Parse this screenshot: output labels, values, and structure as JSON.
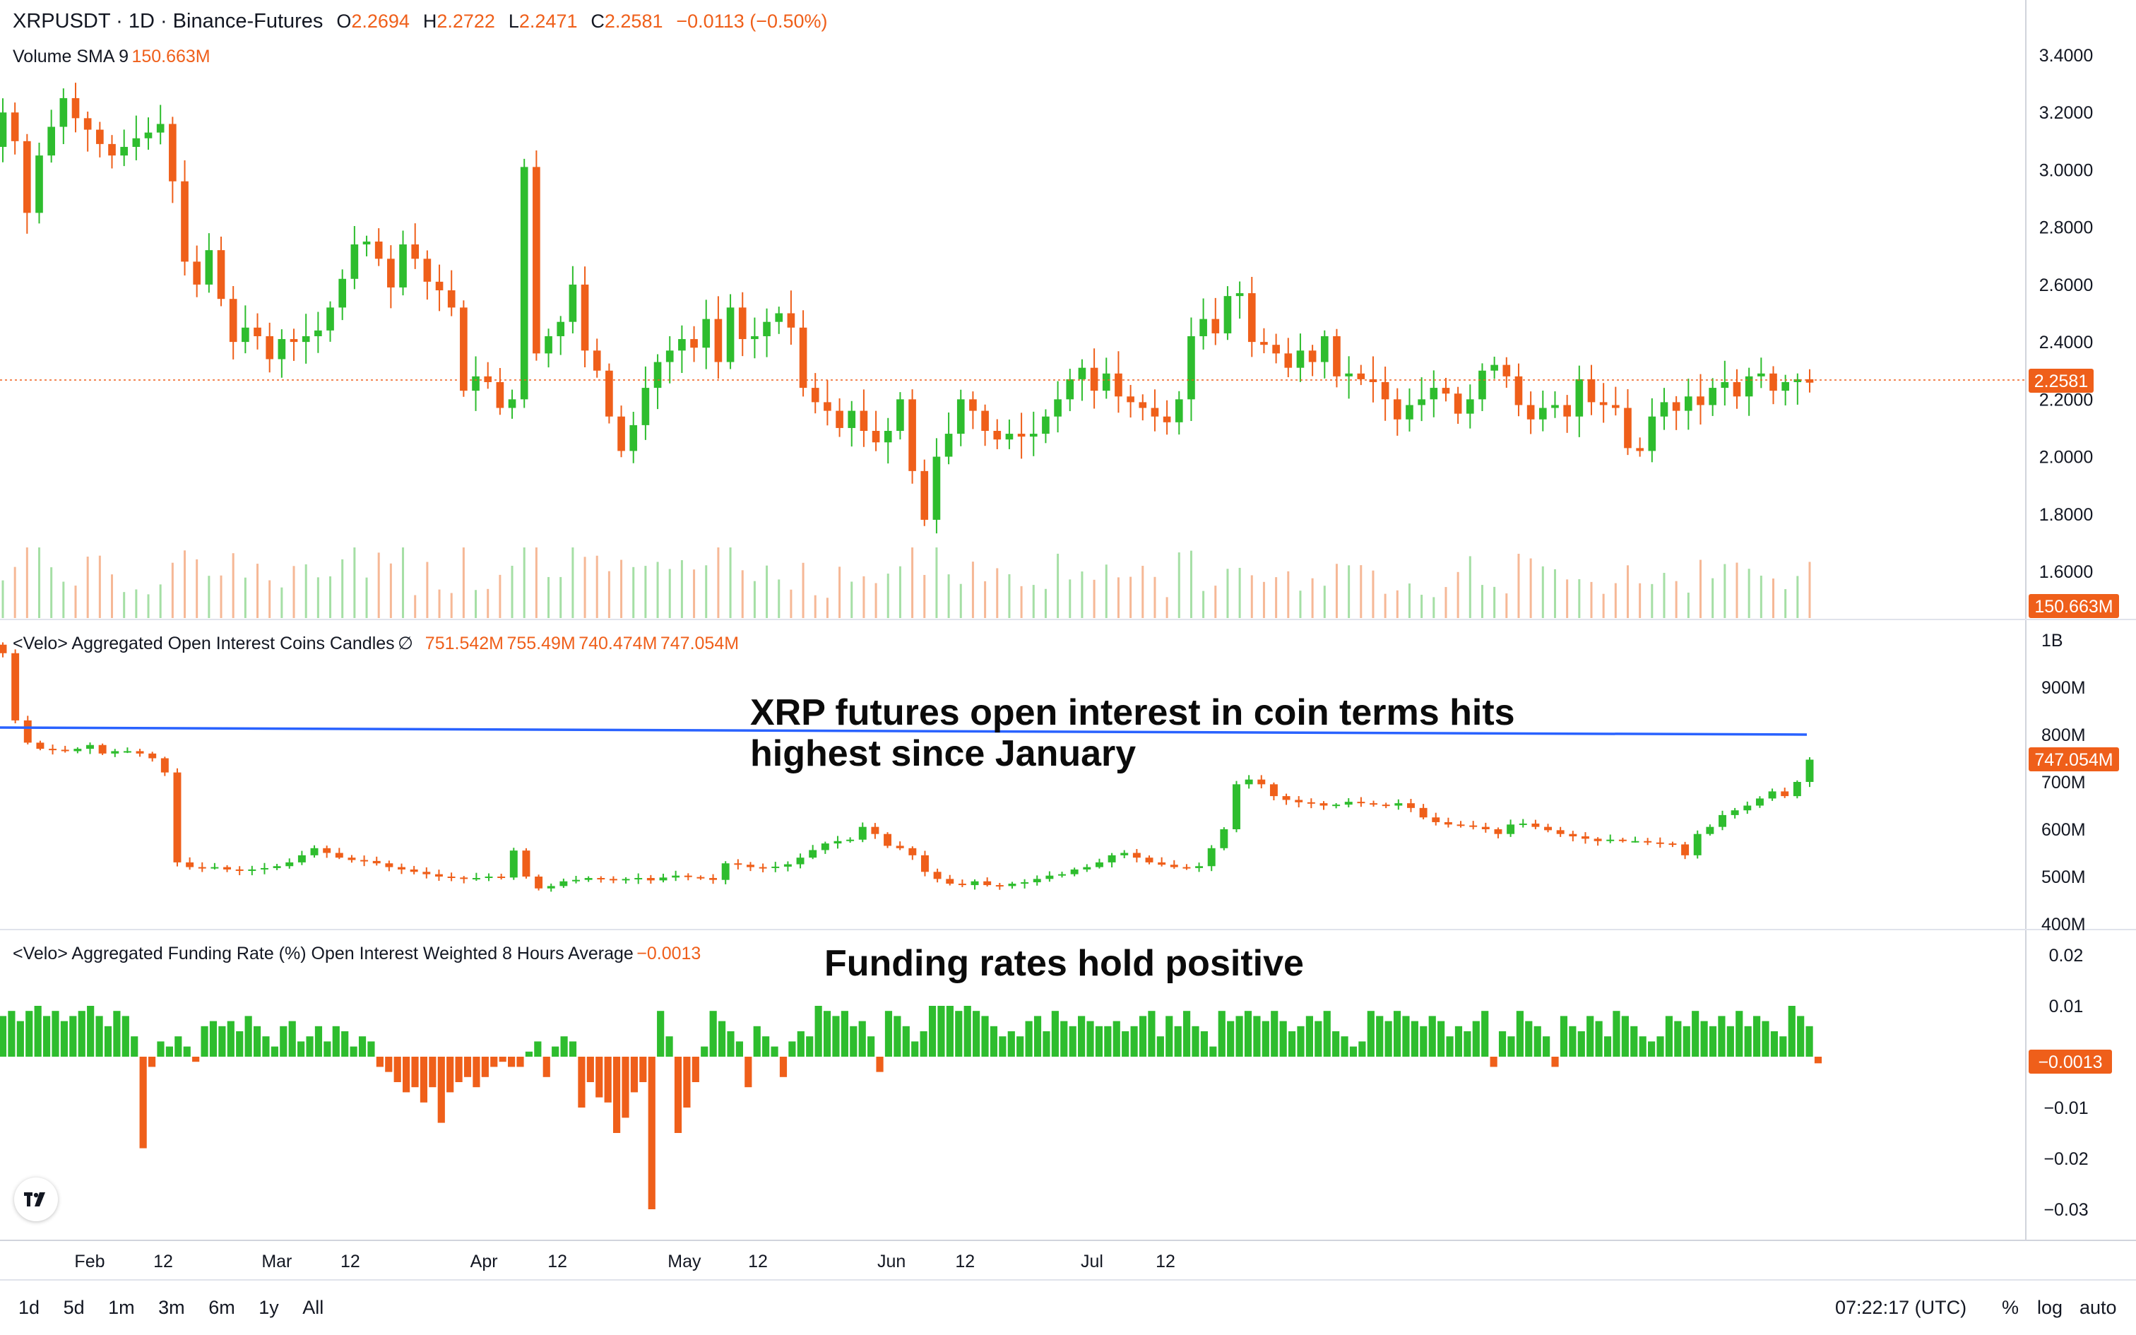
{
  "header": {
    "symbol": "XRPUSDT · 1D · Binance-Futures",
    "o_label": "O",
    "o": "2.2694",
    "h_label": "H",
    "h": "2.2722",
    "l_label": "L",
    "l": "2.2471",
    "c_label": "C",
    "c": "2.2581",
    "change": "−0.0113 (−0.50%)",
    "volume_label": "Volume SMA 9",
    "volume_value": "150.663M"
  },
  "oi_header": {
    "label": "<Velo> Aggregated Open Interest  Coins Candles",
    "eye": "∅",
    "o": "751.542M",
    "h": "755.49M",
    "l": "740.474M",
    "c": "747.054M"
  },
  "fr_header": {
    "label": "<Velo> Aggregated Funding Rate (%) Open Interest Weighted 8 Hours Average",
    "value": "−0.0013"
  },
  "annotations": {
    "oi_line1": "XRP futures open interest in coin terms hits",
    "oi_line2": "highest since January",
    "funding": "Funding rates hold positive"
  },
  "bottom_bar": {
    "ranges": [
      "1d",
      "5d",
      "1m",
      "3m",
      "6m",
      "1y",
      "All"
    ],
    "clock": "07:22:17 (UTC)",
    "percent": "%",
    "log": "log",
    "auto": "auto"
  },
  "colors": {
    "up": "#2ebd2e",
    "down": "#ef5f1a",
    "line": "#2962ff",
    "grid": "#e0e3eb",
    "text": "#131722"
  },
  "chart_data": [
    {
      "type": "candlestick",
      "title": "XRPUSDT · 1D · Binance-Futures",
      "yaxis_ticks": [
        "3.4000",
        "3.2000",
        "3.0000",
        "2.8000",
        "2.6000",
        "2.4000",
        "2.2000",
        "2.0000",
        "1.8000",
        "1.6000"
      ],
      "ylim": [
        1.6,
        3.4
      ],
      "last_price": "2.2581",
      "x_ticks": [
        "Feb",
        "12",
        "Mar",
        "12",
        "Apr",
        "12",
        "May",
        "12",
        "Jun",
        "12",
        "Jul",
        "12"
      ],
      "x_tick_dates": [
        "2025-02-01",
        "2025-02-12",
        "2025-03-01",
        "2025-03-12",
        "2025-04-01",
        "2025-04-12",
        "2025-05-01",
        "2025-05-12",
        "2025-06-01",
        "2025-06-12",
        "2025-07-01",
        "2025-07-12"
      ],
      "first_date": "2025-01-19",
      "closes": [
        3.2,
        3.1,
        2.85,
        3.05,
        3.15,
        3.25,
        3.18,
        3.14,
        3.09,
        3.05,
        3.08,
        3.11,
        3.13,
        3.16,
        2.96,
        2.68,
        2.6,
        2.72,
        2.55,
        2.4,
        2.45,
        2.42,
        2.34,
        2.41,
        2.4,
        2.42,
        2.44,
        2.52,
        2.62,
        2.74,
        2.75,
        2.69,
        2.59,
        2.74,
        2.69,
        2.61,
        2.58,
        2.52,
        2.23,
        2.28,
        2.26,
        2.17,
        2.2,
        3.01,
        2.36,
        2.42,
        2.47,
        2.6,
        2.37,
        2.3,
        2.14,
        2.02,
        2.11,
        2.24,
        2.33,
        2.37,
        2.41,
        2.38,
        2.48,
        2.33,
        2.52,
        2.41,
        2.42,
        2.47,
        2.5,
        2.45,
        2.24,
        2.19,
        2.16,
        2.1,
        2.16,
        2.09,
        2.05,
        2.09,
        2.2,
        1.95,
        1.78,
        2.0,
        2.08,
        2.2,
        2.16,
        2.09,
        2.06,
        2.08,
        2.07,
        2.08,
        2.14,
        2.2,
        2.27,
        2.31,
        2.23,
        2.29,
        2.21,
        2.19,
        2.17,
        2.14,
        2.12,
        2.2,
        2.42,
        2.48,
        2.43,
        2.56,
        2.57,
        2.4,
        2.39,
        2.36,
        2.31,
        2.37,
        2.33,
        2.42,
        2.28,
        2.29,
        2.27,
        2.26,
        2.2,
        2.13,
        2.18,
        2.2,
        2.24,
        2.22,
        2.15,
        2.2,
        2.3,
        2.32,
        2.28,
        2.18,
        2.13,
        2.17,
        2.18,
        2.14,
        2.27,
        2.19,
        2.18,
        2.17,
        2.03,
        2.02,
        2.14,
        2.19,
        2.16,
        2.21,
        2.18,
        2.24,
        2.26,
        2.21,
        2.28,
        2.29,
        2.23,
        2.26,
        2.27,
        2.2581
      ],
      "series": [
        {
          "name": "Volume SMA 9",
          "last": "150.663M"
        }
      ]
    },
    {
      "type": "candlestick",
      "title": "<Velo> Aggregated Open Interest  Coins Candles",
      "yaxis_ticks": [
        "1B",
        "900M",
        "800M",
        "700M",
        "600M",
        "500M",
        "400M"
      ],
      "ylim": [
        400,
        1000
      ],
      "last_value": "747.054M",
      "closes": [
        972,
        830,
        783,
        770,
        768,
        765,
        770,
        778,
        760,
        765,
        765,
        760,
        750,
        720,
        530,
        520,
        518,
        520,
        515,
        512,
        515,
        518,
        522,
        530,
        545,
        560,
        550,
        540,
        535,
        533,
        528,
        520,
        515,
        510,
        505,
        500,
        498,
        495,
        497,
        500,
        498,
        555,
        500,
        475,
        480,
        490,
        493,
        497,
        495,
        493,
        495,
        497,
        492,
        498,
        502,
        499,
        497,
        493,
        528,
        525,
        520,
        518,
        521,
        526,
        540,
        556,
        570,
        575,
        578,
        605,
        590,
        565,
        560,
        545,
        510,
        495,
        485,
        482,
        490,
        482,
        480,
        485,
        488,
        495,
        502,
        505,
        515,
        520,
        530,
        545,
        550,
        540,
        530,
        525,
        520,
        518,
        522,
        560,
        600,
        695,
        705,
        695,
        670,
        662,
        657,
        655,
        650,
        652,
        658,
        655,
        652,
        650,
        655,
        645,
        625,
        615,
        610,
        608,
        605,
        600,
        590,
        610,
        612,
        605,
        598,
        590,
        585,
        580,
        575,
        578,
        575,
        575,
        572,
        570,
        568,
        545,
        590,
        605,
        630,
        640,
        650,
        665,
        680,
        670,
        700,
        747.054
      ]
    },
    {
      "type": "bar",
      "title": "<Velo> Aggregated Funding Rate (%) Open Interest Weighted 8 Hours Average",
      "yaxis_ticks": [
        "0.02",
        "0.01",
        "−0.01",
        "−0.02",
        "−0.03"
      ],
      "ylim": [
        -0.03,
        0.02
      ],
      "last_value": "−0.0013",
      "values": [
        0.008,
        0.009,
        0.007,
        0.009,
        0.01,
        0.008,
        0.009,
        0.007,
        0.008,
        0.009,
        0.01,
        0.008,
        0.006,
        0.009,
        0.008,
        0.004,
        -0.018,
        -0.002,
        0.003,
        0.002,
        0.004,
        0.002,
        -0.001,
        0.006,
        0.007,
        0.006,
        0.007,
        0.005,
        0.008,
        0.006,
        0.004,
        0.002,
        0.006,
        0.007,
        0.003,
        0.004,
        0.006,
        0.003,
        0.006,
        0.005,
        0.002,
        0.004,
        0.003,
        -0.002,
        -0.003,
        -0.005,
        -0.007,
        -0.006,
        -0.009,
        -0.006,
        -0.013,
        -0.007,
        -0.005,
        -0.004,
        -0.006,
        -0.004,
        -0.002,
        -0.001,
        -0.002,
        -0.002,
        0.001,
        0.003,
        -0.004,
        0.002,
        0.004,
        0.003,
        -0.01,
        -0.005,
        -0.008,
        -0.009,
        -0.015,
        -0.012,
        -0.007,
        -0.005,
        -0.03,
        0.009,
        0.004,
        -0.015,
        -0.01,
        -0.005,
        0.002,
        0.009,
        0.007,
        0.005,
        0.003,
        -0.006,
        0.006,
        0.004,
        0.002,
        -0.004,
        0.003,
        0.005,
        0.004,
        0.01,
        0.009,
        0.008,
        0.009,
        0.006,
        0.007,
        0.004,
        -0.003,
        0.009,
        0.008,
        0.006,
        0.003,
        0.005,
        0.01,
        0.01,
        0.01,
        0.009,
        0.01,
        0.009,
        0.008,
        0.006,
        0.004,
        0.005,
        0.004,
        0.007,
        0.008,
        0.005,
        0.009,
        0.007,
        0.006,
        0.008,
        0.007,
        0.006,
        0.006,
        0.007,
        0.005,
        0.006,
        0.008,
        0.009,
        0.004,
        0.008,
        0.006,
        0.009,
        0.006,
        0.005,
        0.002,
        0.009,
        0.007,
        0.008,
        0.009,
        0.008,
        0.007,
        0.009,
        0.007,
        0.005,
        0.006,
        0.008,
        0.007,
        0.009,
        0.005,
        0.004,
        0.002,
        0.003,
        0.009,
        0.008,
        0.007,
        0.009,
        0.008,
        0.007,
        0.006,
        0.008,
        0.007,
        0.004,
        0.006,
        0.005,
        0.007,
        0.009,
        -0.002,
        0.005,
        0.004,
        0.009,
        0.007,
        0.006,
        0.004,
        -0.002,
        0.008,
        0.006,
        0.005,
        0.008,
        0.007,
        0.004,
        0.009,
        0.008,
        0.006,
        0.004,
        0.003,
        0.004,
        0.008,
        0.007,
        0.006,
        0.009,
        0.007,
        0.006,
        0.008,
        0.006,
        0.009,
        0.006,
        0.008,
        0.007,
        0.005,
        0.004,
        0.01,
        0.008,
        0.006,
        -0.0013
      ]
    }
  ]
}
